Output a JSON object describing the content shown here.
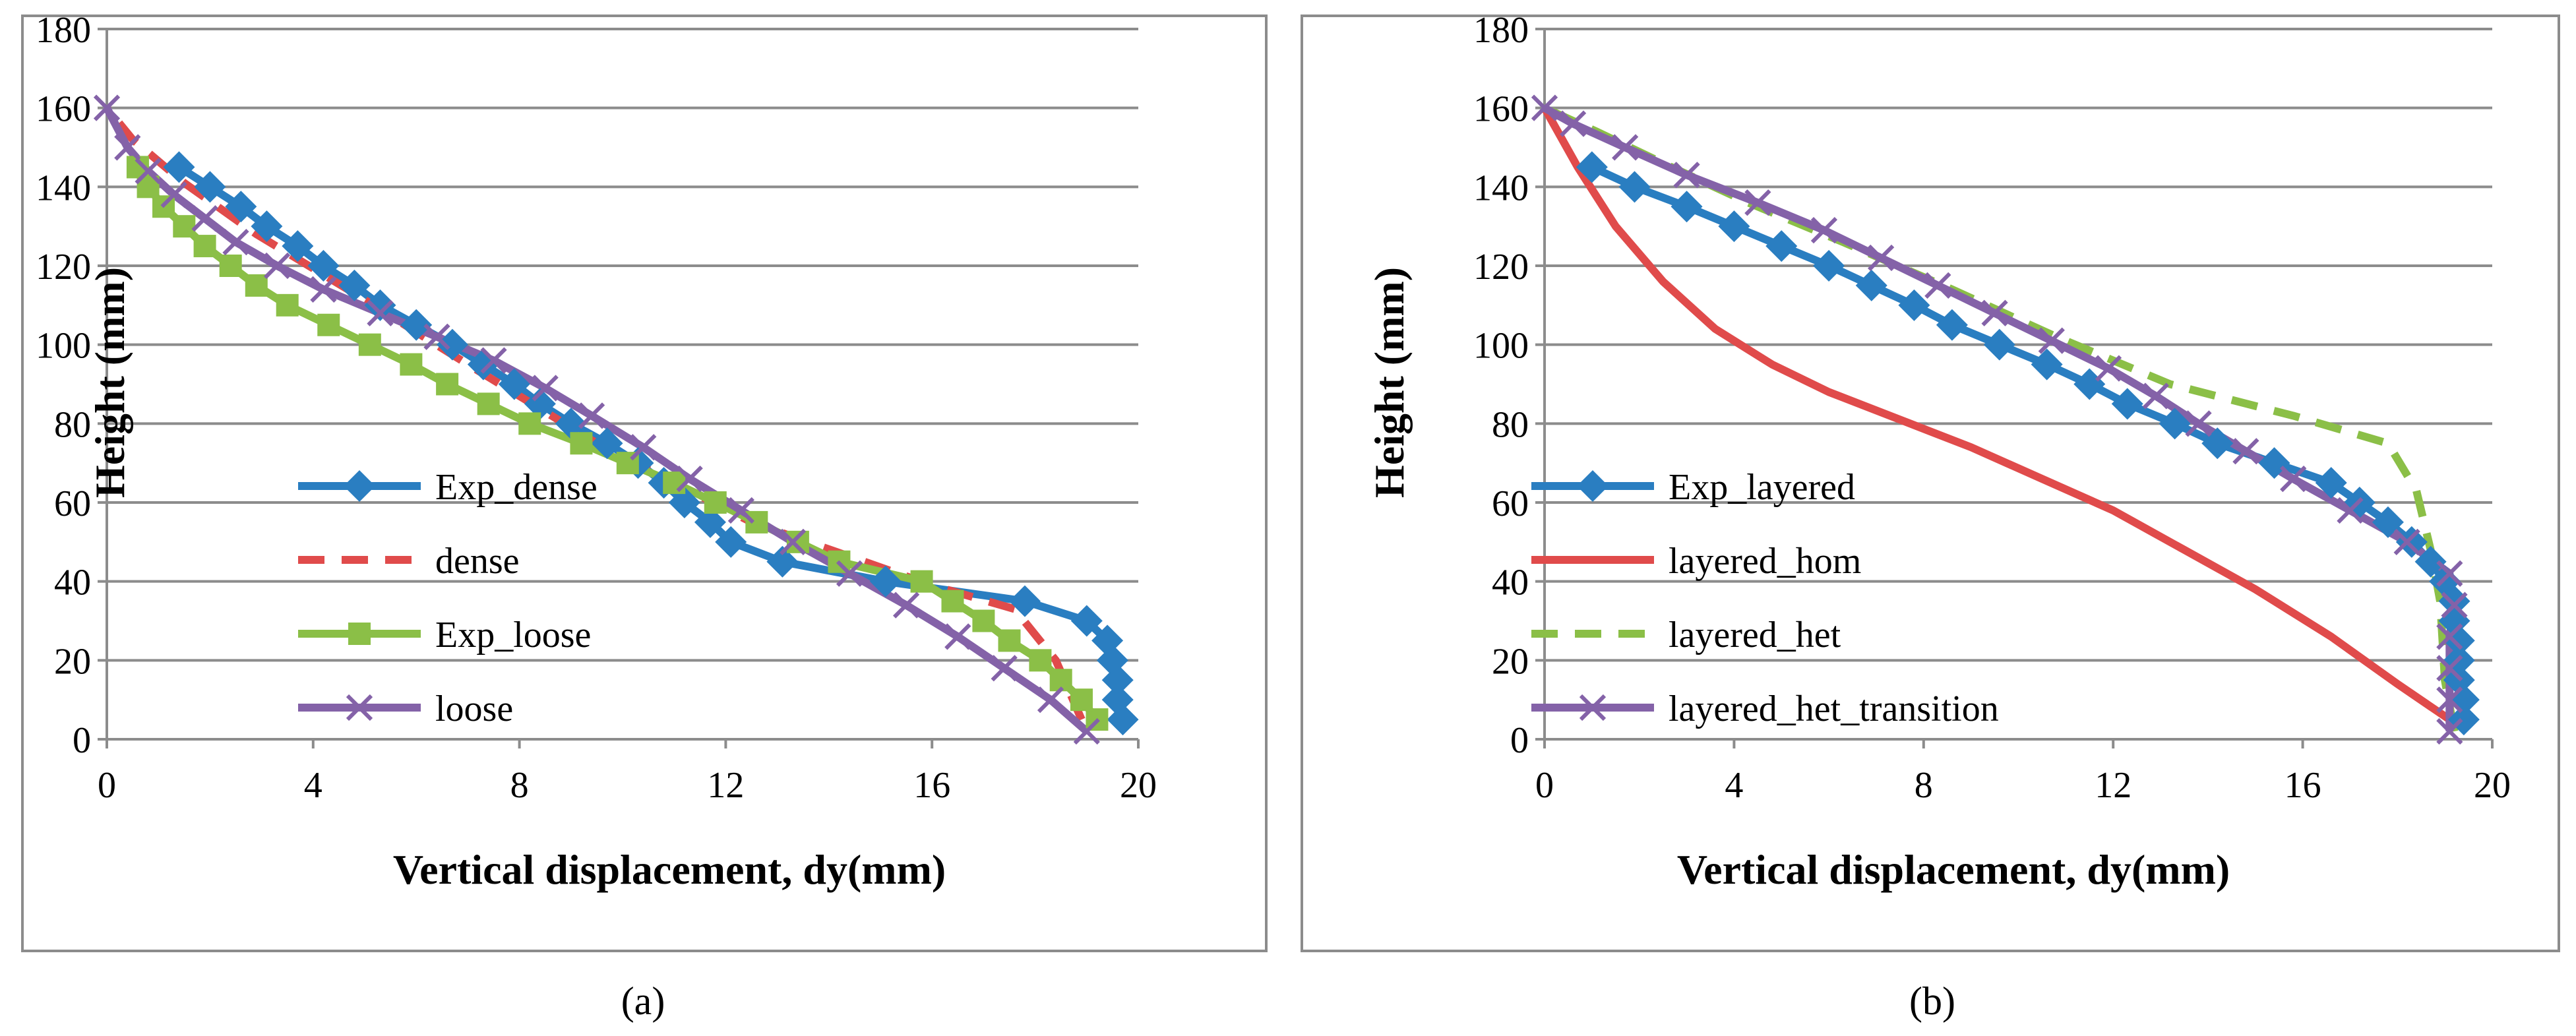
{
  "chart_data": [
    {
      "type": "line",
      "caption": "(a)",
      "xlabel": "Vertical displacement, dy(mm)",
      "ylabel": "Height (mm)",
      "xlim": [
        0,
        20
      ],
      "ylim": [
        0,
        180
      ],
      "xticks": [
        0,
        4,
        8,
        12,
        16,
        20
      ],
      "yticks": [
        0,
        20,
        40,
        60,
        80,
        100,
        120,
        140,
        160,
        180
      ],
      "grid": "horizontal",
      "legend": "left",
      "series": [
        {
          "name": "Exp_dense",
          "color": "#2a7ec1",
          "style": "solid",
          "marker": "diamond",
          "points": [
            [
              19.7,
              5
            ],
            [
              19.6,
              10
            ],
            [
              19.6,
              15
            ],
            [
              19.5,
              20
            ],
            [
              19.4,
              25
            ],
            [
              19.0,
              30
            ],
            [
              17.8,
              35
            ],
            [
              15.1,
              40
            ],
            [
              13.1,
              45
            ],
            [
              12.1,
              50
            ],
            [
              11.7,
              55
            ],
            [
              11.2,
              60
            ],
            [
              10.8,
              65
            ],
            [
              10.3,
              70
            ],
            [
              9.7,
              75
            ],
            [
              9.0,
              80
            ],
            [
              8.4,
              85
            ],
            [
              7.9,
              90
            ],
            [
              7.3,
              95
            ],
            [
              6.7,
              100
            ],
            [
              6.0,
              105
            ],
            [
              5.3,
              110
            ],
            [
              4.8,
              115
            ],
            [
              4.2,
              120
            ],
            [
              3.7,
              125
            ],
            [
              3.1,
              130
            ],
            [
              2.6,
              135
            ],
            [
              2.0,
              140
            ],
            [
              1.4,
              145
            ]
          ]
        },
        {
          "name": "dense",
          "color": "#e04b4b",
          "style": "dashed",
          "marker": "none",
          "points": [
            [
              18.9,
              5
            ],
            [
              18.4,
              20
            ],
            [
              17.6,
              33
            ],
            [
              16.0,
              39
            ],
            [
              12.5,
              55
            ],
            [
              9.5,
              75
            ],
            [
              7.0,
              95
            ],
            [
              4.8,
              113
            ],
            [
              2.9,
              128
            ],
            [
              1.5,
              141
            ],
            [
              0.5,
              152
            ],
            [
              0.0,
              160
            ]
          ]
        },
        {
          "name": "Exp_loose",
          "color": "#8bbf47",
          "style": "solid",
          "marker": "square",
          "points": [
            [
              19.2,
              5
            ],
            [
              18.9,
              10
            ],
            [
              18.5,
              15
            ],
            [
              18.1,
              20
            ],
            [
              17.5,
              25
            ],
            [
              17.0,
              30
            ],
            [
              16.4,
              35
            ],
            [
              15.8,
              40
            ],
            [
              14.2,
              45
            ],
            [
              13.4,
              50
            ],
            [
              12.6,
              55
            ],
            [
              11.8,
              60
            ],
            [
              11.0,
              65
            ],
            [
              10.1,
              70
            ],
            [
              9.2,
              75
            ],
            [
              8.2,
              80
            ],
            [
              7.4,
              85
            ],
            [
              6.6,
              90
            ],
            [
              5.9,
              95
            ],
            [
              5.1,
              100
            ],
            [
              4.3,
              105
            ],
            [
              3.5,
              110
            ],
            [
              2.9,
              115
            ],
            [
              2.4,
              120
            ],
            [
              1.9,
              125
            ],
            [
              1.5,
              130
            ],
            [
              1.1,
              135
            ],
            [
              0.8,
              140
            ],
            [
              0.6,
              145
            ]
          ]
        },
        {
          "name": "loose",
          "color": "#8462a8",
          "style": "solid",
          "marker": "x",
          "points": [
            [
              19.0,
              2
            ],
            [
              18.3,
              10
            ],
            [
              17.4,
              18
            ],
            [
              16.5,
              26
            ],
            [
              15.5,
              34
            ],
            [
              14.4,
              42
            ],
            [
              13.3,
              50
            ],
            [
              12.3,
              58
            ],
            [
              11.3,
              66
            ],
            [
              10.4,
              74
            ],
            [
              9.4,
              82
            ],
            [
              8.5,
              89
            ],
            [
              7.5,
              96
            ],
            [
              6.4,
              102
            ],
            [
              5.3,
              108
            ],
            [
              4.2,
              114
            ],
            [
              3.3,
              120
            ],
            [
              2.5,
              126
            ],
            [
              1.9,
              132
            ],
            [
              1.3,
              138
            ],
            [
              0.8,
              144
            ],
            [
              0.4,
              150
            ],
            [
              0.0,
              160
            ]
          ]
        }
      ]
    },
    {
      "type": "line",
      "caption": "(b)",
      "xlabel": "Vertical displacement, dy(mm)",
      "ylabel": "Height (mm)",
      "xlim": [
        0,
        20
      ],
      "ylim": [
        0,
        180
      ],
      "xticks": [
        0,
        4,
        8,
        12,
        16,
        20
      ],
      "yticks": [
        0,
        20,
        40,
        60,
        80,
        100,
        120,
        140,
        160,
        180
      ],
      "grid": "horizontal",
      "legend": "left",
      "series": [
        {
          "name": "Exp_layered",
          "color": "#2a7ec1",
          "style": "solid",
          "marker": "diamond",
          "points": [
            [
              19.4,
              5
            ],
            [
              19.4,
              10
            ],
            [
              19.3,
              15
            ],
            [
              19.3,
              20
            ],
            [
              19.3,
              25
            ],
            [
              19.2,
              30
            ],
            [
              19.2,
              35
            ],
            [
              19.0,
              40
            ],
            [
              18.7,
              45
            ],
            [
              18.3,
              50
            ],
            [
              17.8,
              55
            ],
            [
              17.2,
              60
            ],
            [
              16.6,
              65
            ],
            [
              15.4,
              70
            ],
            [
              14.2,
              75
            ],
            [
              13.3,
              80
            ],
            [
              12.3,
              85
            ],
            [
              11.5,
              90
            ],
            [
              10.6,
              95
            ],
            [
              9.6,
              100
            ],
            [
              8.6,
              105
            ],
            [
              7.8,
              110
            ],
            [
              6.9,
              115
            ],
            [
              6.0,
              120
            ],
            [
              5.0,
              125
            ],
            [
              4.0,
              130
            ],
            [
              3.0,
              135
            ],
            [
              1.9,
              140
            ],
            [
              1.0,
              145
            ]
          ]
        },
        {
          "name": "layered_hom",
          "color": "#e04b4b",
          "style": "solid",
          "marker": "none",
          "points": [
            [
              19.1,
              5
            ],
            [
              18.0,
              14
            ],
            [
              16.6,
              26
            ],
            [
              15.0,
              38
            ],
            [
              13.5,
              48
            ],
            [
              12.0,
              58
            ],
            [
              10.5,
              66
            ],
            [
              9.0,
              74
            ],
            [
              7.5,
              81
            ],
            [
              6.0,
              88
            ],
            [
              4.8,
              95
            ],
            [
              3.6,
              104
            ],
            [
              2.5,
              116
            ],
            [
              1.5,
              130
            ],
            [
              0.7,
              145
            ],
            [
              0.0,
              160
            ]
          ]
        },
        {
          "name": "layered_het",
          "color": "#8bbf47",
          "style": "dashed",
          "marker": "none",
          "points": [
            [
              19.2,
              2
            ],
            [
              19.0,
              15
            ],
            [
              18.9,
              35
            ],
            [
              18.7,
              48
            ],
            [
              18.4,
              63
            ],
            [
              17.8,
              75
            ],
            [
              15.8,
              82
            ],
            [
              13.2,
              90
            ],
            [
              10.8,
              102
            ],
            [
              8.6,
              114
            ],
            [
              6.3,
              126
            ],
            [
              4.3,
              136
            ],
            [
              2.5,
              146
            ],
            [
              1.1,
              154
            ],
            [
              0.0,
              160
            ]
          ]
        },
        {
          "name": "layered_het_transition",
          "color": "#8462a8",
          "style": "solid",
          "marker": "x",
          "points": [
            [
              19.1,
              2
            ],
            [
              19.1,
              10
            ],
            [
              19.1,
              18
            ],
            [
              19.1,
              26
            ],
            [
              19.2,
              34
            ],
            [
              19.1,
              42
            ],
            [
              18.2,
              50
            ],
            [
              17.0,
              58
            ],
            [
              15.8,
              66
            ],
            [
              14.8,
              73
            ],
            [
              13.8,
              80
            ],
            [
              12.9,
              87
            ],
            [
              11.9,
              94
            ],
            [
              10.7,
              101
            ],
            [
              9.5,
              108
            ],
            [
              8.3,
              115
            ],
            [
              7.1,
              122
            ],
            [
              5.9,
              129
            ],
            [
              4.5,
              136
            ],
            [
              3.0,
              143
            ],
            [
              1.7,
              150
            ],
            [
              0.6,
              156
            ],
            [
              0.0,
              160
            ]
          ]
        }
      ]
    }
  ]
}
